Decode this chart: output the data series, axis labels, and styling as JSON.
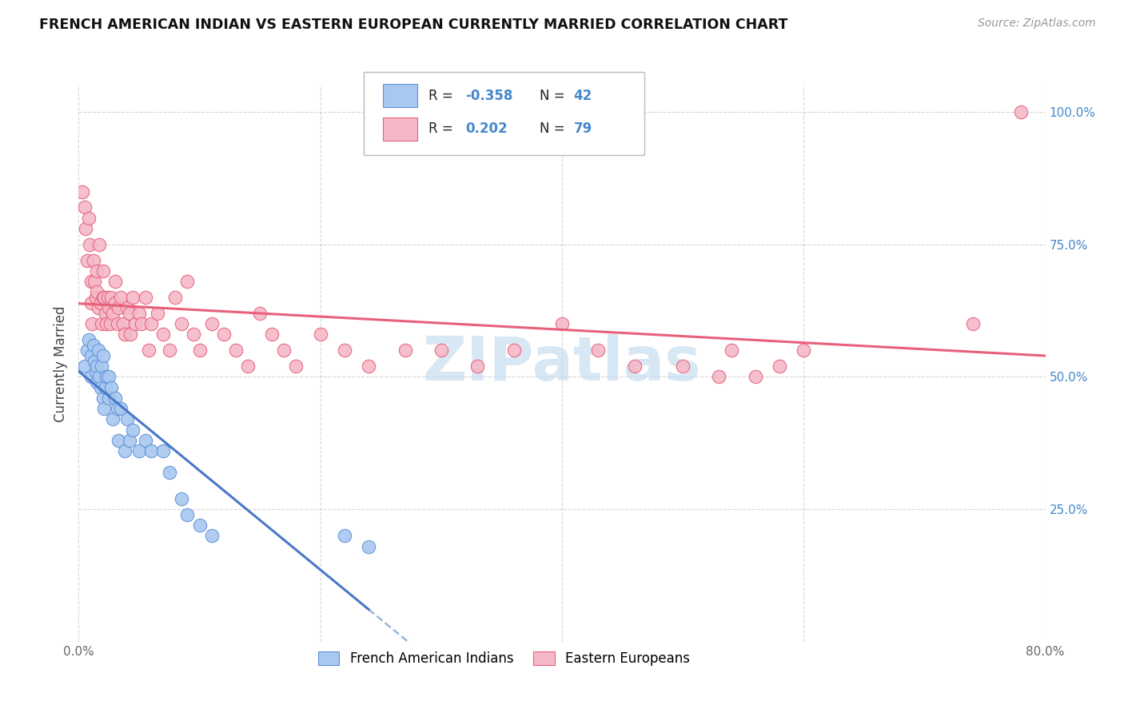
{
  "title": "FRENCH AMERICAN INDIAN VS EASTERN EUROPEAN CURRENTLY MARRIED CORRELATION CHART",
  "source": "Source: ZipAtlas.com",
  "ylabel": "Currently Married",
  "x_min": 0.0,
  "x_max": 0.8,
  "y_min": 0.0,
  "y_max": 1.05,
  "legend_r_blue": "-0.358",
  "legend_n_blue": "42",
  "legend_r_pink": "0.202",
  "legend_n_pink": "79",
  "legend_label_blue": "French American Indians",
  "legend_label_pink": "Eastern Europeans",
  "blue_color": "#a8c8f0",
  "pink_color": "#f4b8c8",
  "blue_line_color": "#4878c8",
  "pink_line_color": "#e8607a",
  "blue_edge_color": "#6090d8",
  "pink_edge_color": "#e8607a",
  "watermark_color": "#c8ddf0",
  "blue_x": [
    0.005,
    0.007,
    0.008,
    0.01,
    0.01,
    0.012,
    0.013,
    0.014,
    0.015,
    0.015,
    0.016,
    0.017,
    0.018,
    0.019,
    0.02,
    0.02,
    0.021,
    0.022,
    0.023,
    0.025,
    0.025,
    0.027,
    0.028,
    0.03,
    0.032,
    0.033,
    0.035,
    0.038,
    0.04,
    0.042,
    0.045,
    0.05,
    0.055,
    0.06,
    0.07,
    0.075,
    0.085,
    0.09,
    0.1,
    0.11,
    0.22,
    0.24
  ],
  "blue_y": [
    0.52,
    0.55,
    0.57,
    0.54,
    0.5,
    0.56,
    0.53,
    0.51,
    0.49,
    0.52,
    0.55,
    0.5,
    0.48,
    0.52,
    0.54,
    0.46,
    0.44,
    0.48,
    0.5,
    0.5,
    0.46,
    0.48,
    0.42,
    0.46,
    0.44,
    0.38,
    0.44,
    0.36,
    0.42,
    0.38,
    0.4,
    0.36,
    0.38,
    0.36,
    0.36,
    0.32,
    0.27,
    0.24,
    0.22,
    0.2,
    0.2,
    0.18
  ],
  "pink_x": [
    0.003,
    0.005,
    0.006,
    0.007,
    0.008,
    0.009,
    0.01,
    0.01,
    0.011,
    0.012,
    0.013,
    0.014,
    0.015,
    0.015,
    0.016,
    0.017,
    0.018,
    0.019,
    0.02,
    0.02,
    0.021,
    0.022,
    0.023,
    0.024,
    0.025,
    0.026,
    0.027,
    0.028,
    0.03,
    0.03,
    0.032,
    0.033,
    0.035,
    0.037,
    0.038,
    0.04,
    0.042,
    0.043,
    0.045,
    0.047,
    0.05,
    0.052,
    0.055,
    0.058,
    0.06,
    0.065,
    0.07,
    0.075,
    0.08,
    0.085,
    0.09,
    0.095,
    0.1,
    0.11,
    0.12,
    0.13,
    0.14,
    0.15,
    0.16,
    0.17,
    0.18,
    0.2,
    0.22,
    0.24,
    0.27,
    0.3,
    0.33,
    0.36,
    0.4,
    0.43,
    0.46,
    0.5,
    0.53,
    0.54,
    0.56,
    0.58,
    0.6,
    0.74,
    0.78
  ],
  "pink_y": [
    0.85,
    0.82,
    0.78,
    0.72,
    0.8,
    0.75,
    0.68,
    0.64,
    0.6,
    0.72,
    0.68,
    0.65,
    0.7,
    0.66,
    0.63,
    0.75,
    0.64,
    0.6,
    0.65,
    0.7,
    0.65,
    0.62,
    0.6,
    0.65,
    0.63,
    0.6,
    0.65,
    0.62,
    0.68,
    0.64,
    0.6,
    0.63,
    0.65,
    0.6,
    0.58,
    0.63,
    0.62,
    0.58,
    0.65,
    0.6,
    0.62,
    0.6,
    0.65,
    0.55,
    0.6,
    0.62,
    0.58,
    0.55,
    0.65,
    0.6,
    0.68,
    0.58,
    0.55,
    0.6,
    0.58,
    0.55,
    0.52,
    0.62,
    0.58,
    0.55,
    0.52,
    0.58,
    0.55,
    0.52,
    0.55,
    0.55,
    0.52,
    0.55,
    0.6,
    0.55,
    0.52,
    0.52,
    0.5,
    0.55,
    0.5,
    0.52,
    0.55,
    0.6,
    1.0
  ]
}
